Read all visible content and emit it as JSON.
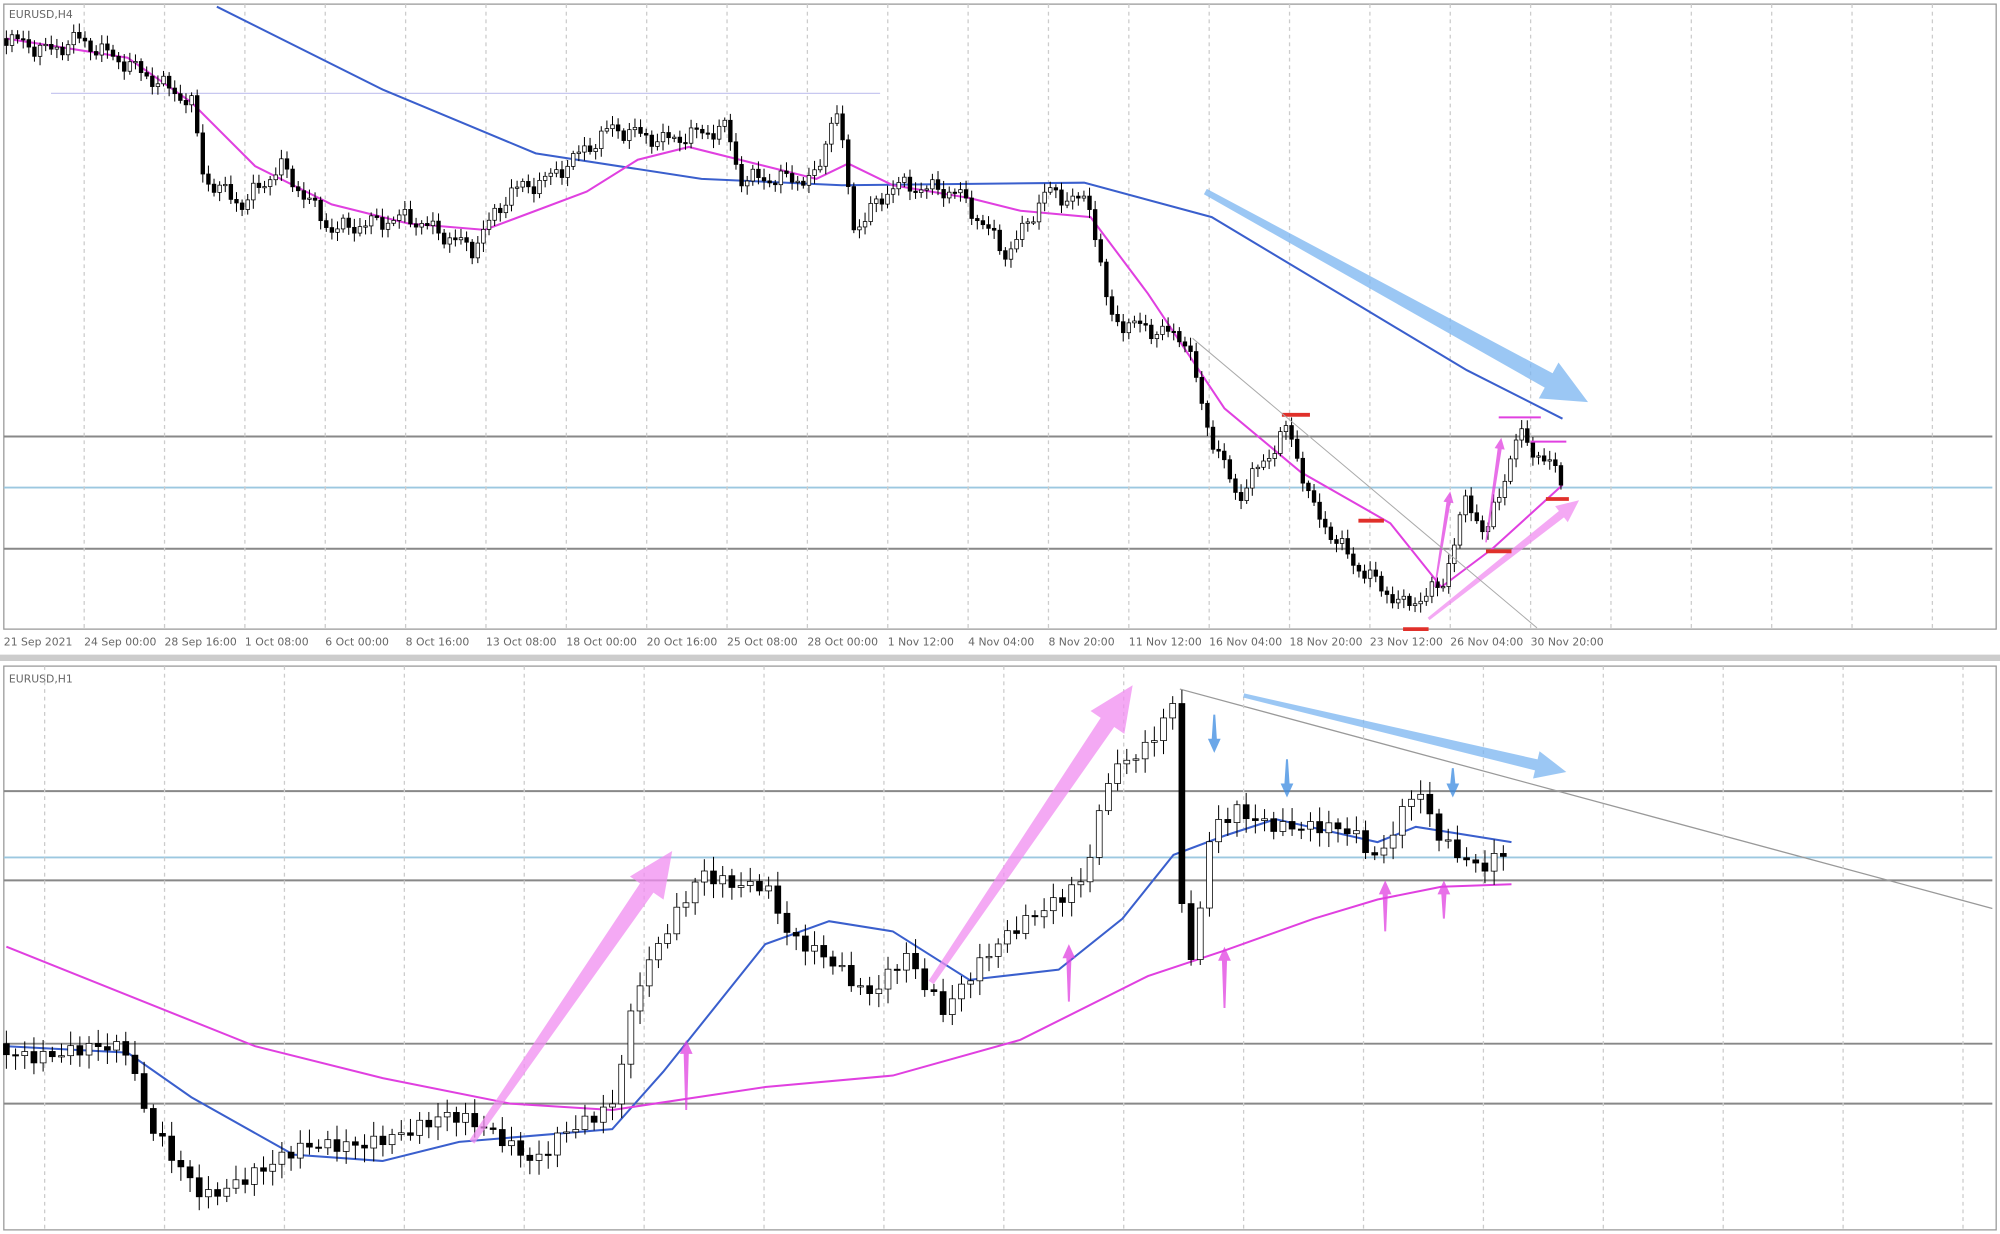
{
  "panels": [
    {
      "symbol": "EURUSD,H4",
      "time_labels": [
        "21 Sep 2021",
        "24 Sep 00:00",
        "28 Sep 16:00",
        "1 Oct 08:00",
        "6 Oct 00:00",
        "8 Oct 16:00",
        "13 Oct 08:00",
        "18 Oct 00:00",
        "20 Oct 16:00",
        "25 Oct 08:00",
        "28 Oct 00:00",
        "1 Nov 12:00",
        "4 Nov 04:00",
        "8 Nov 20:00",
        "11 Nov 12:00",
        "16 Nov 04:00",
        "18 Nov 20:00",
        "23 Nov 12:00",
        "26 Nov 04:00",
        "30 Nov 20:00"
      ]
    },
    {
      "symbol": "EURUSD,H1"
    }
  ]
}
